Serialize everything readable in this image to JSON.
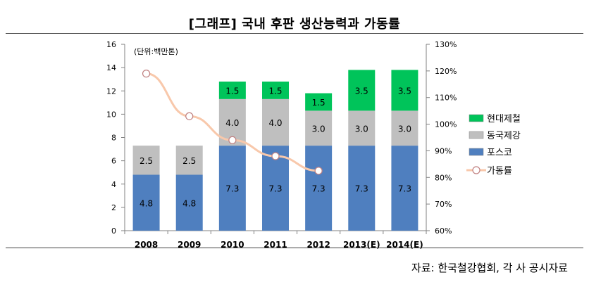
{
  "title": "[그래프] 국내 후판 생산능력과 가동률",
  "source": "자료: 한국철강협회, 각 사 공시자료",
  "chart_data": {
    "type": "bar",
    "stacked": true,
    "unit_label": "(단위:백만톤)",
    "categories": [
      "2008",
      "2009",
      "2010",
      "2011",
      "2012",
      "2013(E)",
      "2014(E)"
    ],
    "series": [
      {
        "name": "포스코",
        "color": "#4f7fbf",
        "values": [
          4.8,
          4.8,
          7.3,
          7.3,
          7.3,
          7.3,
          7.3
        ],
        "labels": [
          "4.8",
          "4.8",
          "7.3",
          "7.3",
          "7.3",
          "7.3",
          "7.3"
        ]
      },
      {
        "name": "동국제강",
        "color": "#bfbfbf",
        "values": [
          2.5,
          2.5,
          4.0,
          4.0,
          3.0,
          3.0,
          3.0
        ],
        "labels": [
          "2.5",
          "2.5",
          "4.0",
          "4.0",
          "3.0",
          "3.0",
          "3.0"
        ]
      },
      {
        "name": "현대제철",
        "color": "#00c45a",
        "values": [
          0,
          0,
          1.5,
          1.5,
          1.5,
          3.5,
          3.5
        ],
        "labels": [
          "",
          "",
          "1.5",
          "1.5",
          "1.5",
          "3.5",
          "3.5"
        ]
      }
    ],
    "line_series": {
      "name": "가동률",
      "color": "#f8c8ab",
      "marker_edge": "#c08080",
      "values": [
        119,
        103,
        94,
        88,
        82.5,
        null,
        null
      ]
    },
    "yaxis_left": {
      "min": 0,
      "max": 16,
      "ticks": [
        "0",
        "2",
        "4",
        "6",
        "8",
        "10",
        "12",
        "14",
        "16"
      ]
    },
    "yaxis_right": {
      "min": 60,
      "max": 130,
      "ticks": [
        "60%",
        "70%",
        "80%",
        "90%",
        "100%",
        "110%",
        "120%",
        "130%"
      ]
    },
    "legend": [
      "현대제철",
      "동국제강",
      "포스코",
      "가동률"
    ],
    "legend_position": "right"
  }
}
